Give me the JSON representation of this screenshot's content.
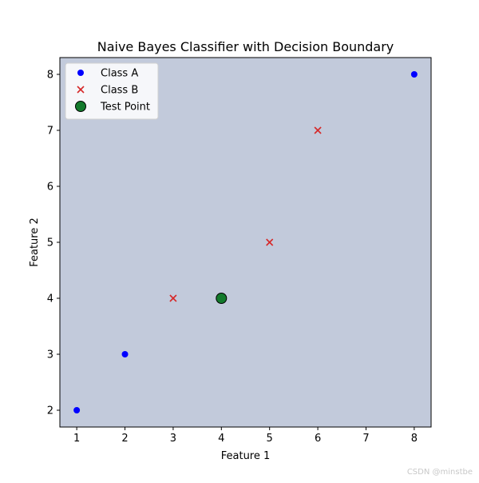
{
  "chart_data": {
    "type": "scatter",
    "title": "Naive Bayes Classifier with Decision Boundary",
    "xlabel": "Feature 1",
    "ylabel": "Feature 2",
    "xlim": [
      0.65,
      8.35
    ],
    "ylim": [
      1.7,
      8.3
    ],
    "xticks": [
      1,
      2,
      3,
      4,
      5,
      6,
      7,
      8
    ],
    "yticks": [
      2,
      3,
      4,
      5,
      6,
      7,
      8
    ],
    "grid": false,
    "legend_position": "upper-left",
    "region_color": "#c2cadb",
    "series": [
      {
        "name": "Class A",
        "marker": "circle",
        "color": "#0000ff",
        "points": [
          [
            1,
            2
          ],
          [
            2,
            3
          ],
          [
            8,
            8
          ]
        ]
      },
      {
        "name": "Class B",
        "marker": "x",
        "color": "#d62728",
        "points": [
          [
            3,
            4
          ],
          [
            5,
            5
          ],
          [
            6,
            7
          ]
        ]
      },
      {
        "name": "Test Point",
        "marker": "big-circle",
        "color": "#137a2c",
        "edge": "#000000",
        "points": [
          [
            4,
            4
          ]
        ]
      }
    ]
  },
  "watermark": "CSDN @minstbe"
}
